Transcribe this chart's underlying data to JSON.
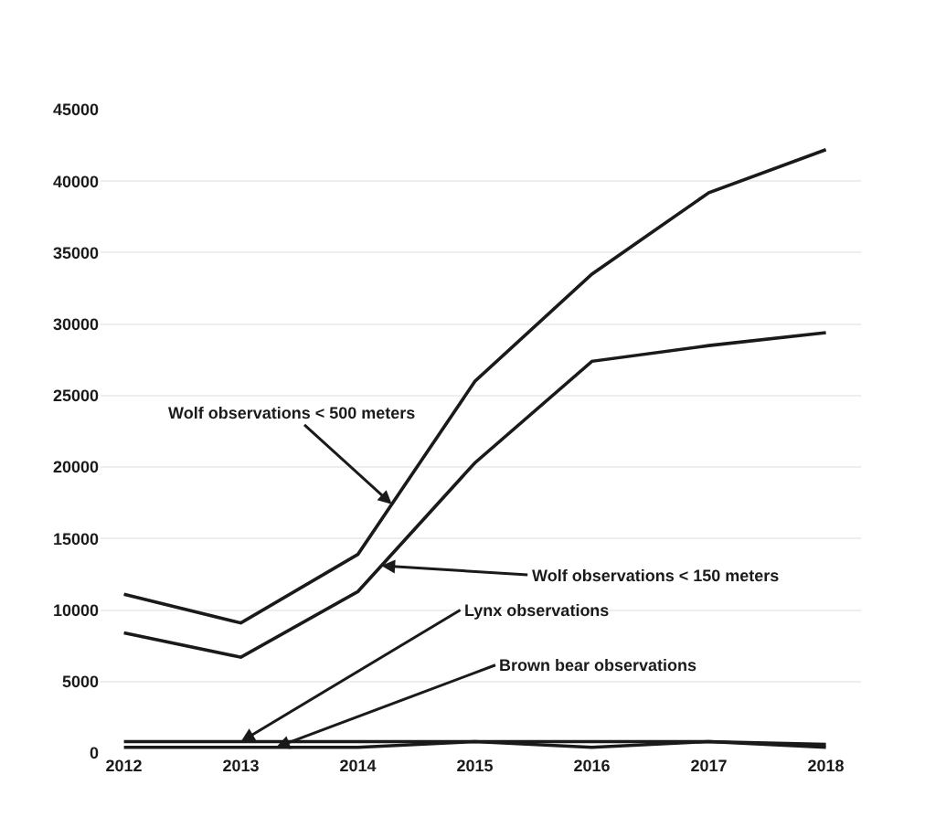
{
  "chart_data": {
    "type": "line",
    "x": [
      2012,
      2013,
      2014,
      2015,
      2016,
      2017,
      2018
    ],
    "series": [
      {
        "color": "#1a1a1a",
        "values": [
          11100,
          9100,
          13900,
          26000,
          33500,
          39200,
          42200
        ]
      },
      {
        "color": "#1a1a1a",
        "values": [
          8400,
          6700,
          11300,
          20300,
          27400,
          28500,
          29400
        ]
      },
      {
        "color": "#1a1a1a",
        "values": [
          800,
          800,
          800,
          800,
          800,
          800,
          600
        ]
      },
      {
        "color": "#1a1a1a",
        "values": [
          400,
          400,
          400,
          800,
          400,
          800,
          400
        ]
      }
    ],
    "xlim": [
      2011.8,
      2018.3
    ],
    "xticks": [
      2012,
      2013,
      2014,
      2015,
      2016,
      2017,
      2018
    ],
    "ylim": [
      0,
      45000
    ],
    "yticks": [
      0,
      5000,
      10000,
      15000,
      20000,
      25000,
      30000,
      35000,
      40000,
      45000
    ],
    "grid": "y",
    "legend": false,
    "marker": "none",
    "line_style": "solid",
    "annotations": [
      {
        "text": "Wolf observations < 500 meters",
        "x": 2014.29,
        "y": 17400
      },
      {
        "text": "Wolf observations < 150 meters",
        "x": 2014.2,
        "y": 13100
      },
      {
        "text": "Lynx observations",
        "x": 2013,
        "y": 800
      },
      {
        "text": "Brown bear observations",
        "x": 2013.3,
        "y": 400
      }
    ]
  }
}
